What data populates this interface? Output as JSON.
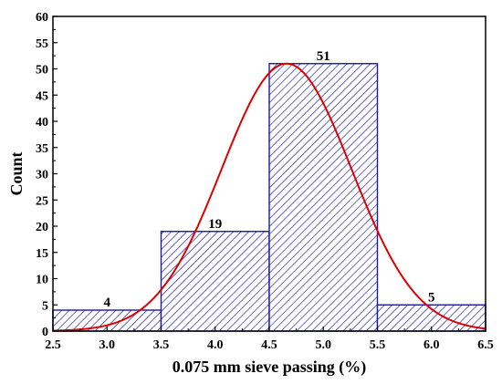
{
  "chart_data": {
    "type": "bar",
    "title": "",
    "xlabel": "0.075 mm sieve passing (%)",
    "ylabel": "Count",
    "xlim": [
      2.5,
      6.5
    ],
    "ylim": [
      0,
      60
    ],
    "xticks": [
      "2.5",
      "3.0",
      "3.5",
      "4.0",
      "4.5",
      "5.0",
      "5.5",
      "6.0",
      "6.5"
    ],
    "yticks": [
      "0",
      "5",
      "10",
      "15",
      "20",
      "25",
      "30",
      "35",
      "40",
      "45",
      "50",
      "55",
      "60"
    ],
    "bins": [
      {
        "x0": 2.5,
        "x1": 3.5,
        "count": 4,
        "label": "4"
      },
      {
        "x0": 3.5,
        "x1": 4.5,
        "count": 19,
        "label": "19"
      },
      {
        "x0": 4.5,
        "x1": 5.5,
        "count": 51,
        "label": "51"
      },
      {
        "x0": 5.5,
        "x1": 6.5,
        "count": 5,
        "label": "5"
      }
    ],
    "fit_curve": {
      "type": "normal",
      "mean": 4.66,
      "sd": 0.6,
      "peak": 51
    },
    "colors": {
      "bar": "#1a1aa6",
      "curve": "#e00000",
      "axis": "#000000"
    },
    "grid": false
  }
}
